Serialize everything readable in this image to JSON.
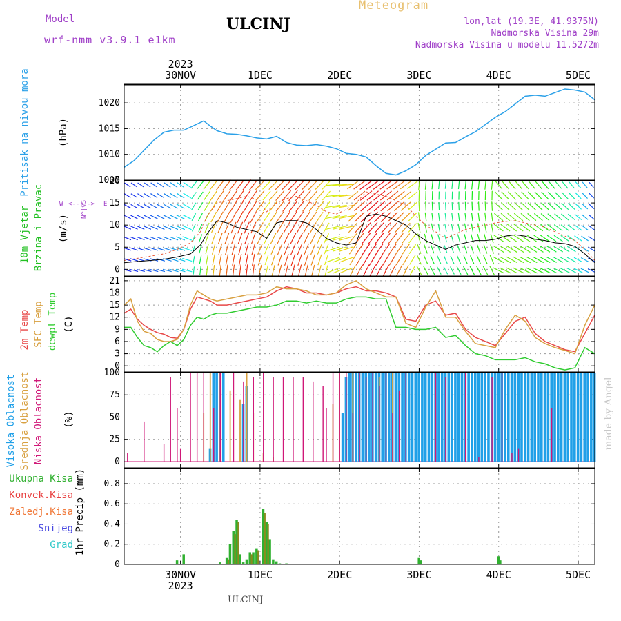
{
  "header": {
    "model_label": "Model",
    "model_name": "wrf-nmm_v3.9.1 e1km",
    "station": "ULCINJ",
    "product": "Meteogram",
    "coords": "lon,lat (19.3E, 41.9375N)",
    "altitude": "Nadmorska Visina 29m",
    "model_altitude": "Nadmorska Visina u modelu 11.5272m",
    "watermark": "made by Angel",
    "footer": "ULCINJ"
  },
  "colors": {
    "model": "#a040c8",
    "product": "#e8c070",
    "info": "#a040c8",
    "pressure": "#2aa0e8",
    "wind_label": "#22c022",
    "temp2m": "#e84848",
    "sfc": "#d8a040",
    "dewpt": "#30cc30",
    "high": "#20a0e8",
    "mid": "#d8a040",
    "low": "#d01878"
  },
  "time_axis": {
    "year": "2023",
    "days": [
      "30NOV",
      "1DEC",
      "2DEC",
      "3DEC",
      "4DEC",
      "5DEC"
    ],
    "range_hours": [
      -17,
      125
    ]
  },
  "chart_data": [
    {
      "type": "line",
      "panel": "pressure",
      "ylabel": "Pritisak na nivou mora",
      "unit": "(hPa)",
      "ylim": [
        1005,
        1023.5
      ],
      "yticks": [
        1005,
        1010,
        1015,
        1020
      ],
      "grid": true,
      "x": [
        -17,
        -14,
        -11,
        -8,
        -5,
        -2,
        1,
        4,
        7,
        9,
        11,
        14,
        17,
        20,
        23,
        26,
        29,
        32,
        35,
        38,
        41,
        44,
        47,
        50,
        53,
        56,
        59,
        62,
        65,
        68,
        71,
        74,
        77,
        80,
        83,
        86,
        89,
        92,
        95,
        98,
        101,
        104,
        107,
        110,
        113,
        116,
        119,
        122,
        125
      ],
      "series": [
        {
          "name": "",
          "values": [
            1007.5,
            1008.8,
            1010.8,
            1012.8,
            1014.3,
            1014.7,
            1014.7,
            1015.6,
            1016.5,
            1015.5,
            1014.6,
            1014.0,
            1013.9,
            1013.6,
            1013.2,
            1013.0,
            1013.5,
            1012.3,
            1011.8,
            1011.7,
            1011.9,
            1011.6,
            1011.1,
            1010.2,
            1010.0,
            1009.5,
            1007.8,
            1006.3,
            1006.0,
            1006.8,
            1008.0,
            1009.8,
            1011.0,
            1012.2,
            1012.3,
            1013.4,
            1014.4,
            1015.8,
            1017.2,
            1018.3,
            1019.8,
            1021.3,
            1021.5,
            1021.3,
            1022.0,
            1022.7,
            1022.5,
            1022.1,
            1020.6
          ]
        }
      ]
    },
    {
      "type": "line",
      "panel": "wind",
      "ylabel": [
        "10m Vjetar",
        "Brzina i Pravac"
      ],
      "unit": "(m/s)",
      "compass": [
        "W",
        "<--|-->",
        "E",
        "N",
        "^",
        "|",
        "v",
        "S"
      ],
      "ylim": [
        -1.5,
        20
      ],
      "yticks": [
        0,
        5,
        10,
        15,
        20
      ],
      "grid": true,
      "x": [
        -17,
        -13,
        -9,
        -5,
        -1,
        3,
        6,
        8,
        11,
        14,
        17,
        20,
        23,
        26,
        29,
        32,
        35,
        38,
        41,
        44,
        47,
        50,
        53,
        56,
        59,
        62,
        65,
        68,
        71,
        74,
        77,
        80,
        83,
        86,
        89,
        92,
        95,
        98,
        101,
        104,
        107,
        110,
        113,
        116,
        119,
        122,
        125
      ],
      "series": [
        {
          "name": "",
          "values": [
            1.5,
            1.8,
            2.0,
            2.3,
            2.8,
            3.5,
            5.5,
            8.0,
            11.0,
            10.5,
            9.5,
            9.0,
            8.5,
            7.0,
            10.5,
            11.0,
            11.0,
            10.5,
            9.0,
            7.0,
            6.0,
            5.5,
            6.0,
            12.0,
            12.5,
            12.0,
            11.0,
            10.0,
            8.0,
            6.5,
            5.5,
            4.5,
            5.5,
            6.0,
            6.5,
            6.5,
            6.8,
            7.5,
            7.8,
            7.5,
            6.8,
            6.5,
            6.0,
            5.8,
            5.2,
            3.5,
            1.5
          ]
        },
        {
          "name": "",
          "values": [
            2.0,
            2.5,
            3.0,
            3.5,
            4.5,
            6.0,
            8.5,
            12.0,
            15.0,
            15.5,
            16.0,
            16.5,
            15.8,
            13.0,
            15.0,
            16.0,
            16.5,
            15.5,
            14.5,
            13.0,
            12.5,
            13.5,
            15.0,
            17.5,
            17.0,
            16.5,
            15.5,
            14.5,
            12.0,
            10.0,
            8.5,
            7.0,
            8.0,
            9.0,
            9.5,
            10.0,
            10.5,
            10.8,
            11.0,
            10.5,
            10.0,
            9.5,
            8.5,
            7.5,
            6.5,
            4.5,
            2.0
          ]
        }
      ]
    },
    {
      "type": "line",
      "panel": "temperature",
      "ylabel": [
        "2m Temp",
        "SFC Temp",
        "dewpt Temp"
      ],
      "unit": "(C)",
      "ylim": [
        -1.5,
        22
      ],
      "yticks": [
        0,
        3,
        6,
        9,
        12,
        15,
        18,
        21
      ],
      "grid": true,
      "x": [
        -17,
        -15,
        -13,
        -11,
        -9,
        -7,
        -5,
        -3,
        -1,
        1,
        3,
        5,
        7,
        9,
        11,
        14,
        17,
        20,
        23,
        26,
        29,
        32,
        35,
        38,
        41,
        44,
        47,
        50,
        53,
        56,
        59,
        62,
        65,
        68,
        71,
        74,
        77,
        80,
        83,
        86,
        89,
        92,
        95,
        98,
        101,
        104,
        107,
        110,
        113,
        116,
        119,
        122,
        125
      ],
      "series": [
        {
          "name": "2m Temp",
          "values": [
            13.0,
            14.0,
            11.5,
            10.0,
            9.0,
            8.2,
            7.8,
            7.0,
            6.8,
            9.0,
            14.0,
            17.0,
            16.5,
            16.0,
            15.0,
            15.0,
            15.5,
            16.0,
            16.5,
            17.0,
            18.5,
            19.5,
            19.0,
            18.0,
            18.0,
            17.5,
            18.0,
            19.0,
            19.5,
            18.5,
            18.5,
            18.0,
            17.0,
            11.5,
            11.0,
            15.0,
            16.0,
            12.5,
            13.0,
            9.0,
            7.0,
            6.0,
            5.0,
            8.0,
            11.0,
            12.0,
            8.0,
            6.0,
            5.0,
            4.0,
            3.5,
            8.0,
            12.5
          ]
        },
        {
          "name": "SFC Temp",
          "values": [
            15.0,
            16.5,
            11.0,
            8.5,
            8.0,
            6.5,
            6.0,
            6.0,
            6.5,
            9.0,
            15.0,
            18.5,
            17.5,
            16.5,
            16.0,
            16.5,
            17.0,
            17.5,
            17.5,
            18.0,
            19.5,
            19.0,
            19.0,
            18.5,
            17.5,
            17.5,
            18.0,
            20.0,
            21.0,
            19.0,
            18.0,
            17.0,
            17.0,
            10.5,
            9.5,
            14.5,
            18.5,
            12.0,
            12.0,
            8.5,
            5.5,
            5.0,
            4.5,
            9.0,
            12.5,
            11.0,
            7.0,
            5.5,
            4.5,
            3.8,
            3.0,
            10.0,
            15.0
          ]
        },
        {
          "name": "dewpt Temp",
          "values": [
            9.5,
            9.5,
            7.0,
            5.0,
            4.5,
            3.5,
            5.0,
            6.0,
            5.0,
            6.5,
            10.0,
            12.0,
            11.5,
            12.5,
            13.0,
            13.0,
            13.5,
            14.0,
            14.5,
            14.5,
            15.0,
            16.0,
            16.0,
            15.5,
            16.0,
            15.5,
            15.5,
            16.5,
            17.0,
            17.0,
            16.5,
            16.5,
            9.5,
            9.5,
            9.0,
            9.0,
            9.5,
            7.0,
            7.5,
            5.0,
            3.0,
            2.5,
            1.5,
            1.5,
            1.5,
            2.0,
            1.0,
            0.5,
            -0.5,
            -1.0,
            -0.5,
            4.5,
            3.0
          ]
        }
      ]
    },
    {
      "type": "bar",
      "panel": "cloud",
      "ylabel": [
        "Visoka Oblacnost",
        "Srednja Oblacnost",
        "Niska Oblacnost"
      ],
      "unit": "(%)",
      "ylim": [
        -7,
        100
      ],
      "yticks": [
        0,
        25,
        50,
        75,
        100
      ],
      "grid": true,
      "series": [
        {
          "name": "Visoka Oblacnost",
          "x": [
            6,
            7,
            8,
            9,
            10,
            11,
            12,
            13,
            14,
            19,
            20,
            21,
            45,
            46,
            47,
            48,
            49,
            50,
            51,
            52,
            53,
            54,
            55,
            56,
            57,
            58,
            59,
            60,
            61,
            62,
            63,
            64,
            65,
            66,
            67,
            68,
            69,
            70,
            71,
            72,
            73,
            74,
            75,
            76,
            77,
            78,
            79,
            80,
            81,
            82,
            83,
            84,
            85,
            86,
            87,
            88,
            89,
            90,
            91,
            92,
            93,
            94,
            95,
            96,
            97,
            98,
            99,
            100,
            101,
            102,
            103,
            104,
            105,
            106,
            107,
            108,
            109,
            110,
            111,
            112,
            113,
            114,
            115,
            116,
            117,
            118,
            119,
            120,
            121,
            122,
            123,
            124,
            125
          ],
          "values": [
            0,
            0,
            0,
            15,
            100,
            100,
            100,
            100,
            0,
            65,
            85,
            0,
            0,
            0,
            0,
            0,
            55,
            95,
            100,
            100,
            100,
            100,
            100,
            100,
            100,
            100,
            100,
            100,
            100,
            100,
            100,
            100,
            100,
            100,
            100,
            100,
            100,
            100,
            100,
            100,
            100,
            100,
            100,
            100,
            100,
            100,
            100,
            100,
            100,
            100,
            100,
            100,
            100,
            100,
            100,
            100,
            100,
            100,
            100,
            100,
            100,
            100,
            100,
            100,
            100,
            100,
            100,
            100,
            100,
            100,
            100,
            100,
            100,
            100,
            100,
            100,
            100,
            100,
            100,
            100,
            100,
            100,
            100,
            100,
            100,
            100,
            100,
            100,
            100,
            100,
            100,
            100,
            100
          ]
        },
        {
          "name": "Srednja Oblacnost",
          "x": [
            7,
            9,
            12,
            15,
            18,
            20,
            22,
            25,
            28,
            46,
            48,
            52,
            60,
            64,
            68
          ],
          "values": [
            55,
            100,
            100,
            80,
            70,
            100,
            55,
            10,
            5,
            65,
            100,
            100,
            95,
            100,
            0
          ]
        },
        {
          "name": "Niska Oblacnost",
          "x": [
            -16,
            -11,
            -5,
            -3,
            -1,
            0,
            3,
            5,
            7,
            10,
            12,
            16,
            19,
            22,
            25,
            28,
            31,
            34,
            37,
            40,
            43,
            44,
            46,
            48,
            50,
            52,
            54,
            56,
            58,
            60,
            62,
            64,
            66,
            68,
            77,
            80,
            86,
            90,
            94,
            97,
            100,
            102,
            112
          ],
          "values": [
            10,
            45,
            20,
            95,
            60,
            15,
            100,
            100,
            100,
            60,
            100,
            100,
            90,
            95,
            100,
            95,
            95,
            95,
            95,
            90,
            85,
            60,
            100,
            100,
            100,
            55,
            100,
            95,
            100,
            85,
            100,
            55,
            80,
            100,
            100,
            95,
            100,
            5,
            95,
            100,
            10,
            15,
            60
          ]
        }
      ]
    },
    {
      "type": "bar",
      "panel": "precip",
      "ylabel": "1hr Precip (mm)",
      "legend": [
        "Ukupna Kisa",
        "Konvek.Kisa",
        "Zaledj.Kisa",
        "Snijeg",
        "Grad"
      ],
      "legend_colors": [
        "#30b030",
        "#e84040",
        "#f07838",
        "#4848e0",
        "#30c8c8"
      ],
      "ylim": [
        0,
        0.95
      ],
      "yticks": [
        0,
        0.2,
        0.4,
        0.6,
        0.8
      ],
      "grid": true,
      "series": [
        {
          "name": "Ukupna Kisa",
          "x": [
            -1,
            1,
            12,
            14,
            15,
            16,
            17,
            18,
            19,
            20,
            21,
            22,
            23,
            25,
            26,
            27,
            28,
            29,
            30,
            32,
            72,
            72.5,
            96,
            96.5
          ],
          "values": [
            0.04,
            0.1,
            0.02,
            0.07,
            0.2,
            0.33,
            0.44,
            0.1,
            0.02,
            0.05,
            0.12,
            0.12,
            0.16,
            0.55,
            0.42,
            0.25,
            0.05,
            0.03,
            0.01,
            0.01,
            0.07,
            0.04,
            0.08,
            0.04
          ]
        },
        {
          "name": "Konvek.Kisa",
          "x": [
            14,
            16,
            17,
            21,
            23,
            25,
            26
          ],
          "values": [
            0.05,
            0.3,
            0.42,
            0.1,
            0.14,
            0.51,
            0.4
          ]
        }
      ]
    }
  ]
}
